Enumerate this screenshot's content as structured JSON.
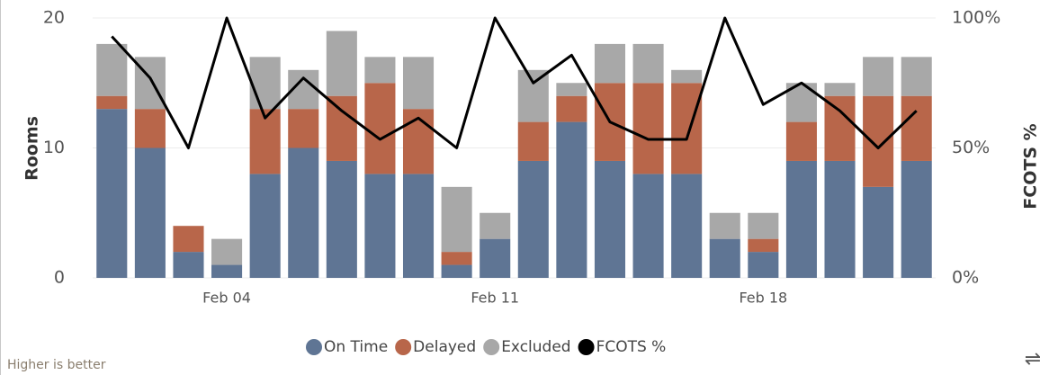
{
  "chart_data": {
    "type": "bar",
    "stacked": true,
    "categories": [
      null,
      null,
      null,
      "Feb 04",
      null,
      null,
      null,
      null,
      null,
      null,
      "Feb 11",
      null,
      null,
      null,
      null,
      null,
      null,
      "Feb 18",
      null,
      null,
      null,
      null
    ],
    "y_label": "Rooms",
    "y2_label": "FCOTS %",
    "note": "Higher is better",
    "ylim": [
      0,
      20
    ],
    "yticks": [
      0,
      10,
      20
    ],
    "y2lim": [
      0,
      100
    ],
    "y2ticks": [
      {
        "value": 0,
        "label": "0%"
      },
      {
        "value": 50,
        "label": "50%"
      },
      {
        "value": 100,
        "label": "100%"
      }
    ],
    "grid": true,
    "legend": "bottom",
    "series": [
      {
        "name": "On Time",
        "color": "#5f7594",
        "values": [
          13,
          10,
          2,
          1,
          8,
          10,
          9,
          8,
          8,
          1,
          3,
          9,
          12,
          9,
          8,
          8,
          3,
          2,
          9,
          9,
          7,
          9
        ]
      },
      {
        "name": "Delayed",
        "color": "#b8664a",
        "values": [
          1,
          3,
          2,
          0,
          5,
          3,
          5,
          7,
          5,
          1,
          0,
          3,
          2,
          6,
          7,
          7,
          0,
          1,
          3,
          5,
          7,
          5
        ]
      },
      {
        "name": "Excluded",
        "color": "#a8a8a8",
        "values": [
          4,
          4,
          0,
          2,
          4,
          3,
          5,
          2,
          4,
          5,
          2,
          4,
          1,
          3,
          3,
          1,
          2,
          2,
          3,
          1,
          3,
          3
        ]
      },
      {
        "name": "FCOTS %",
        "type": "line",
        "axis": "y2",
        "color": "#000000",
        "values": [
          92.9,
          76.9,
          50,
          100,
          61.5,
          76.9,
          64.3,
          53.3,
          61.5,
          50,
          100,
          75,
          85.7,
          60,
          53.3,
          53.3,
          100,
          66.7,
          75,
          64.3,
          50,
          64.3
        ]
      }
    ]
  }
}
